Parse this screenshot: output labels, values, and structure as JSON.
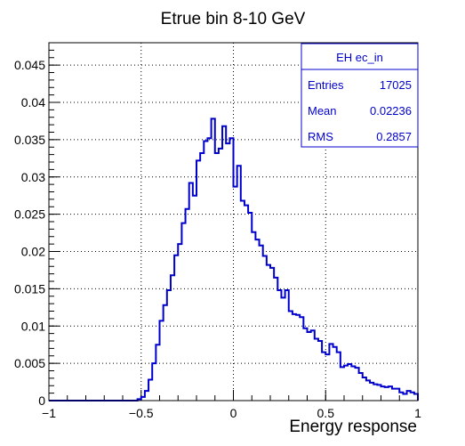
{
  "chart_data": {
    "type": "histogram",
    "title": "Etrue bin 8-10 GeV",
    "xlabel": "Energy response",
    "ylabel": "",
    "xlim": [
      -1,
      1
    ],
    "ylim": [
      0,
      0.048
    ],
    "grid": true,
    "line_color": "#0000cc",
    "x_ticks": [
      {
        "value": -1,
        "label": "−1"
      },
      {
        "value": -0.5,
        "label": "−0.5"
      },
      {
        "value": 0,
        "label": "0"
      },
      {
        "value": 0.5,
        "label": "0.5"
      },
      {
        "value": 1,
        "label": "1"
      }
    ],
    "y_ticks": [
      {
        "value": 0,
        "label": "0"
      },
      {
        "value": 0.005,
        "label": "0.005"
      },
      {
        "value": 0.01,
        "label": "0.01"
      },
      {
        "value": 0.015,
        "label": "0.015"
      },
      {
        "value": 0.02,
        "label": "0.02"
      },
      {
        "value": 0.025,
        "label": "0.025"
      },
      {
        "value": 0.03,
        "label": "0.03"
      },
      {
        "value": 0.035,
        "label": "0.035"
      },
      {
        "value": 0.04,
        "label": "0.04"
      },
      {
        "value": 0.045,
        "label": "0.045"
      }
    ],
    "bin_edges_start": -1,
    "bin_width": 0.02,
    "values": [
      0,
      0,
      0,
      0,
      0,
      0,
      0,
      0,
      0,
      0,
      0,
      0,
      0,
      0,
      0,
      0,
      0,
      0,
      0,
      0,
      0,
      0,
      0,
      0,
      0.0002,
      0.0005,
      0.0013,
      0.0028,
      0.005,
      0.0075,
      0.0107,
      0.0128,
      0.0148,
      0.0168,
      0.0195,
      0.021,
      0.0238,
      0.0257,
      0.0292,
      0.0275,
      0.0322,
      0.0332,
      0.0348,
      0.0352,
      0.0378,
      0.0332,
      0.0338,
      0.0368,
      0.0345,
      0.0352,
      0.0287,
      0.0315,
      0.0268,
      0.0262,
      0.0252,
      0.0226,
      0.0216,
      0.0208,
      0.0194,
      0.0182,
      0.0178,
      0.0165,
      0.0148,
      0.0138,
      0.0148,
      0.012,
      0.0116,
      0.0115,
      0.0112,
      0.0097,
      0.0092,
      0.0094,
      0.0083,
      0.008,
      0.0065,
      0.0062,
      0.0076,
      0.0072,
      0.0065,
      0.0045,
      0.0047,
      0.0049,
      0.0046,
      0.0044,
      0.0037,
      0.0031,
      0.0027,
      0.0024,
      0.0022,
      0.0021,
      0.0019,
      0.0018,
      0.0019,
      0.0016,
      0.0016,
      0.0011,
      0.0009,
      0.0013,
      0.0011,
      0.0009
    ],
    "stats": {
      "name": "EH ec_in",
      "rows": [
        {
          "label": "Entries",
          "value": "17025"
        },
        {
          "label": "Mean",
          "value": "0.02236"
        },
        {
          "label": "RMS",
          "value": "0.2857"
        }
      ]
    }
  }
}
